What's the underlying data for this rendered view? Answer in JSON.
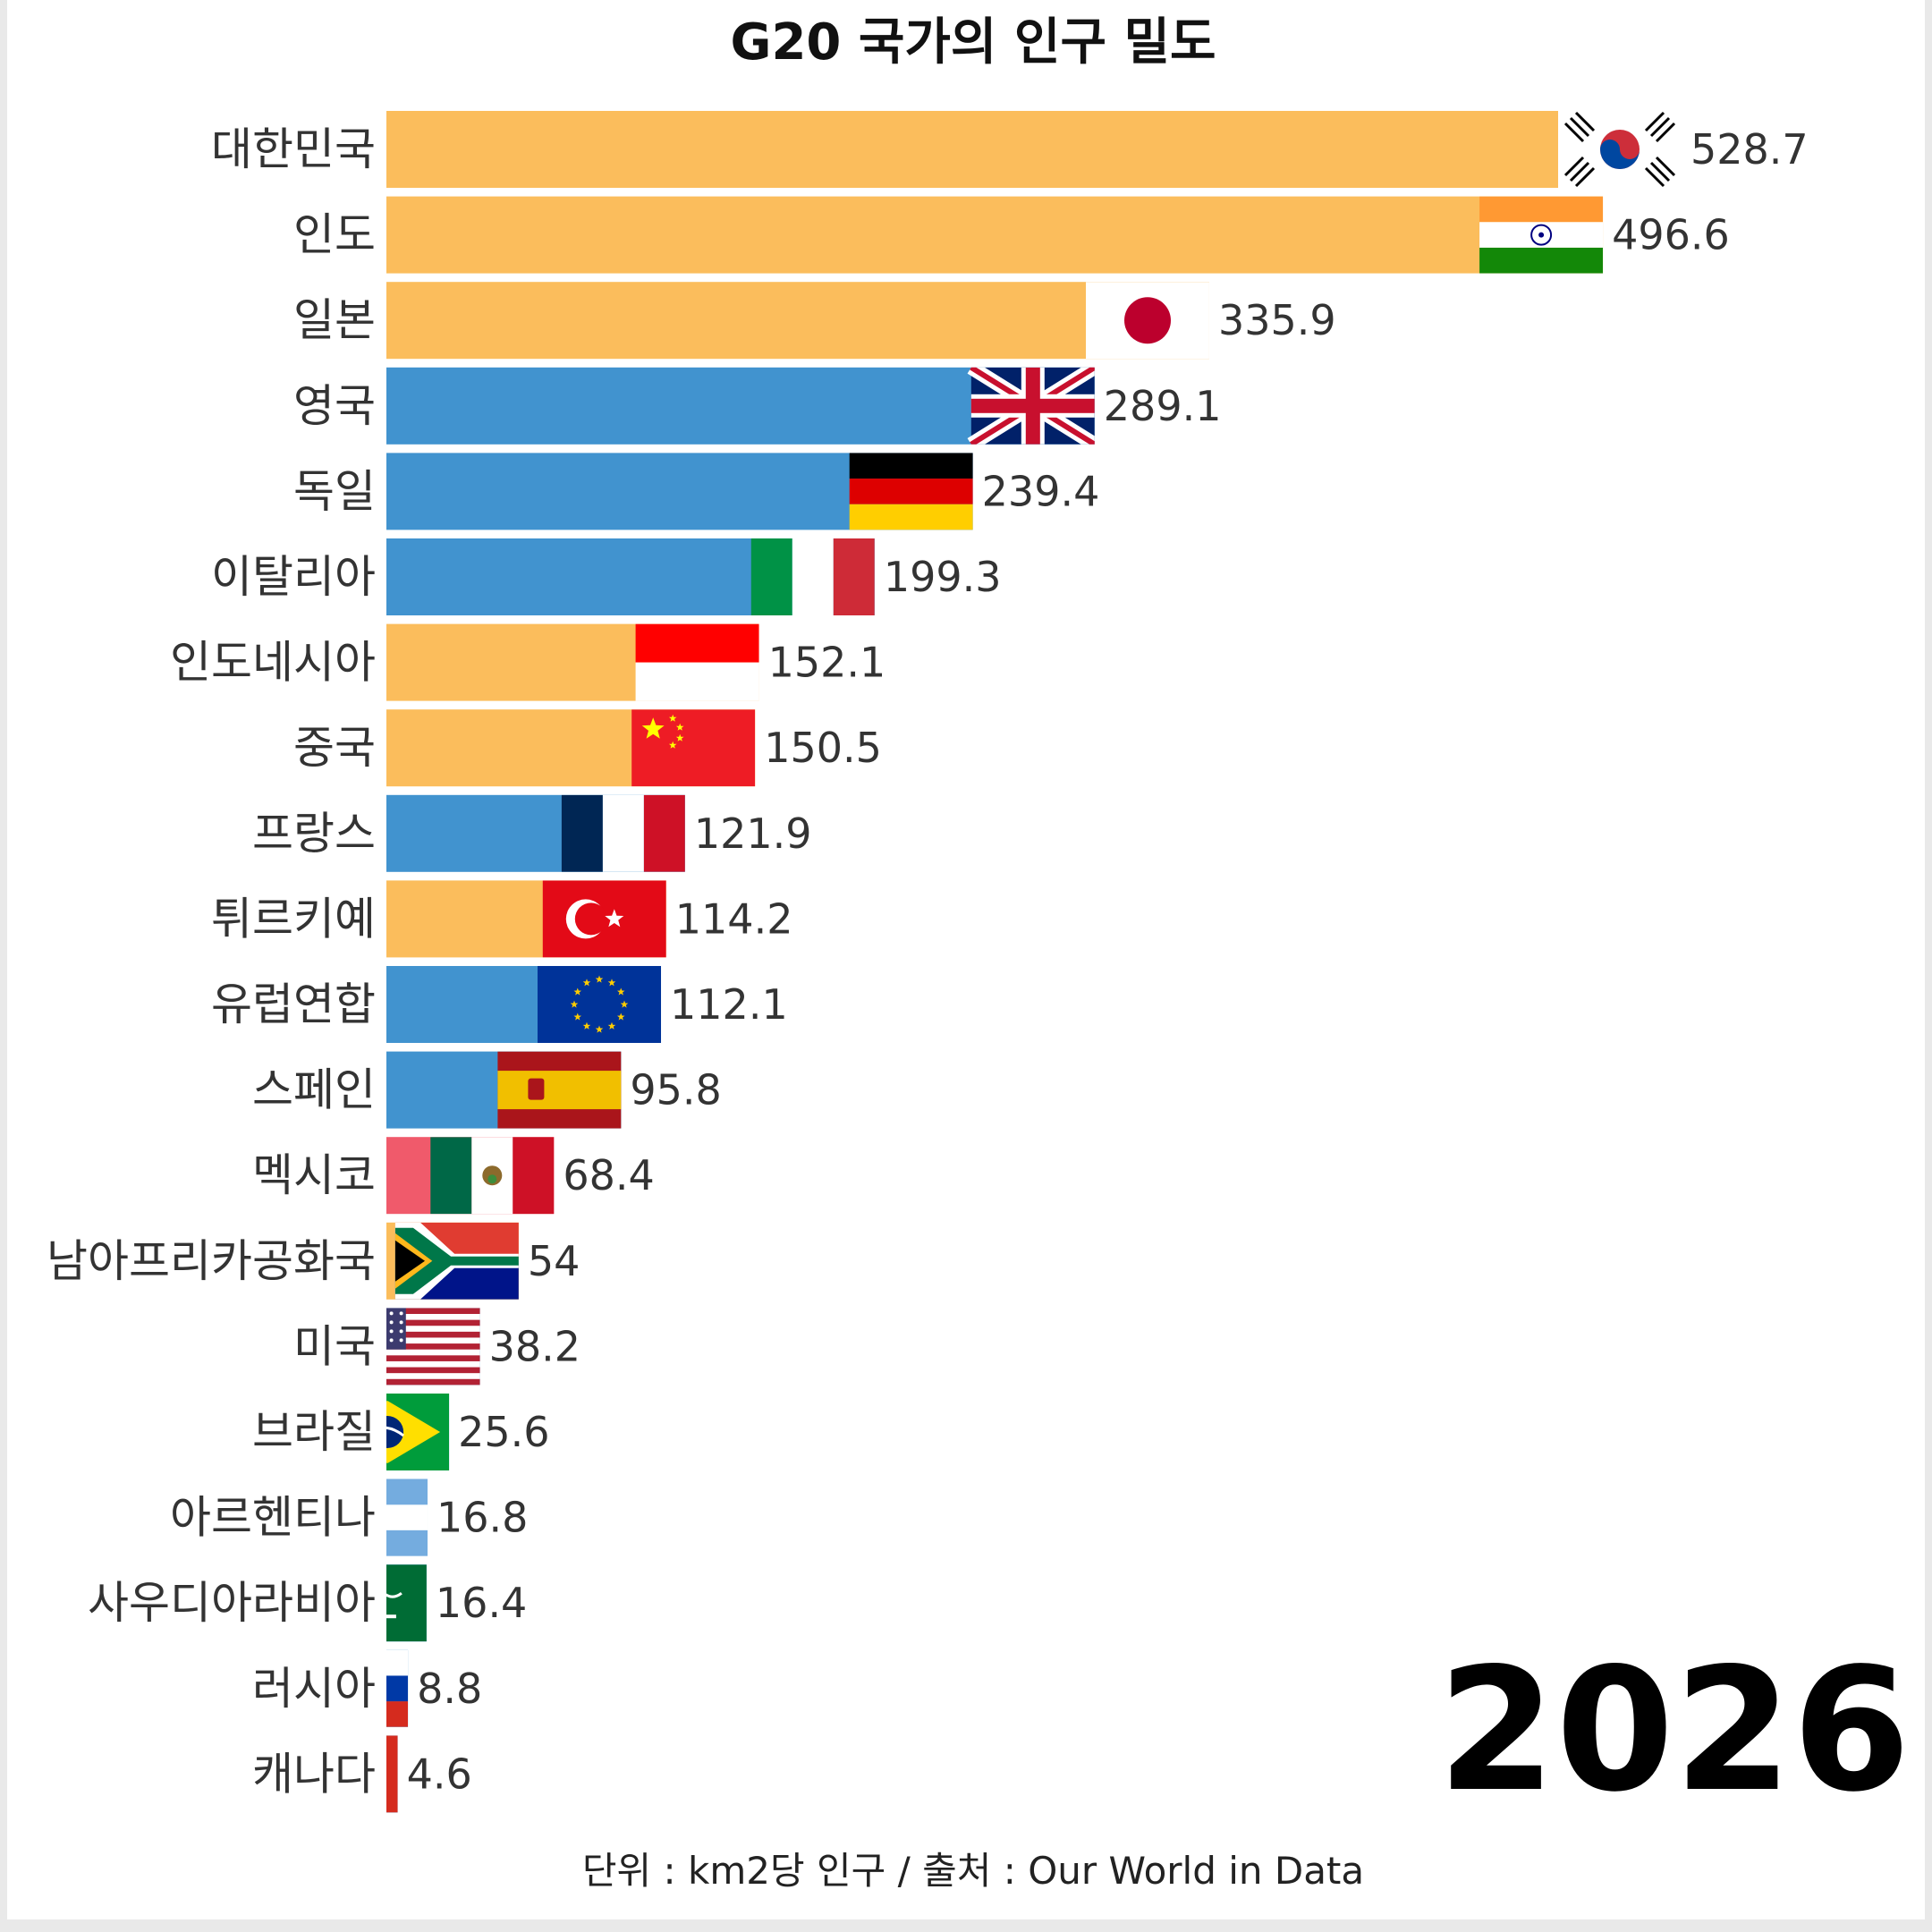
{
  "title": "G20 국가의 인구 밀도",
  "year": "2026",
  "footer": "단위 : km2당 인구 / 출처 : Our World in Data",
  "colors": {
    "asia": "#fbbd5c",
    "other": "#4193cf",
    "background": "#ffffff"
  },
  "chart_data": {
    "type": "bar",
    "orientation": "horizontal",
    "title": "G20 국가의 인구 밀도",
    "unit": "km2당 인구",
    "source": "Our World in Data",
    "categories": [
      "대한민국",
      "인도",
      "일본",
      "영국",
      "독일",
      "이탈리아",
      "인도네시아",
      "중국",
      "프랑스",
      "튀르키예",
      "유럽연합",
      "스페인",
      "멕시코",
      "남아프리카공화국",
      "미국",
      "브라질",
      "아르헨티나",
      "사우디아라비아",
      "러시아",
      "캐나다"
    ],
    "values": [
      528.7,
      496.6,
      335.9,
      289.1,
      239.4,
      199.3,
      152.1,
      150.5,
      121.9,
      114.2,
      112.1,
      95.8,
      68.4,
      54,
      38.2,
      25.6,
      16.8,
      16.4,
      8.8,
      4.6
    ],
    "value_labels": [
      "528.7",
      "496.6",
      "335.9",
      "289.1",
      "239.4",
      "199.3",
      "152.1",
      "150.5",
      "121.9",
      "114.2",
      "112.1",
      "95.8",
      "68.4",
      "54",
      "38.2",
      "25.6",
      "16.8",
      "16.4",
      "8.8",
      "4.6"
    ],
    "bar_colors": [
      "#fbbd5c",
      "#fbbd5c",
      "#fbbd5c",
      "#4193cf",
      "#4193cf",
      "#4193cf",
      "#fbbd5c",
      "#fbbd5c",
      "#4193cf",
      "#fbbd5c",
      "#4193cf",
      "#4193cf",
      "#f05a6b",
      "#fbbd5c",
      "#4193cf",
      "#4193cf",
      "#4193cf",
      "#4193cf",
      "#4193cf",
      "#4193cf"
    ],
    "flag_icons": [
      "south-korea-flag-icon",
      "india-flag-icon",
      "japan-flag-icon",
      "uk-flag-icon",
      "germany-flag-icon",
      "italy-flag-icon",
      "indonesia-flag-icon",
      "china-flag-icon",
      "france-flag-icon",
      "turkey-flag-icon",
      "eu-flag-icon",
      "spain-flag-icon",
      "mexico-flag-icon",
      "south-africa-flag-icon",
      "usa-flag-icon",
      "brazil-flag-icon",
      "argentina-flag-icon",
      "saudi-arabia-flag-icon",
      "russia-flag-icon",
      "canada-flag-icon"
    ],
    "xlim": [
      0,
      528.7
    ],
    "grid": false,
    "legend": "none"
  }
}
